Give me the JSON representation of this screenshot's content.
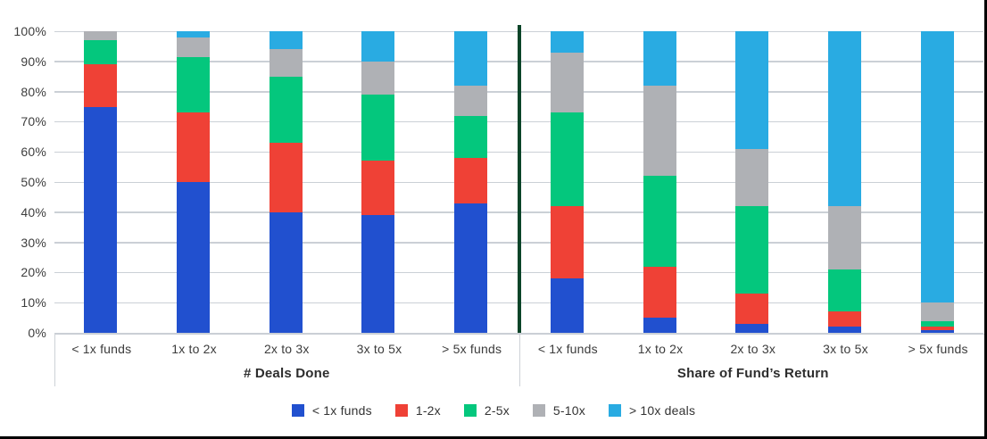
{
  "colors": {
    "series_blue": "#2150CF",
    "series_red": "#EF4136",
    "series_green": "#04C77D",
    "series_gray": "#AFB1B5",
    "series_lightblue": "#29ABE2",
    "divider_green": "#0B4428",
    "gridline": "#CBD0D6",
    "frame_black": "#000000"
  },
  "chart_data": {
    "type": "bar",
    "stacked": true,
    "value_unit": "percent",
    "ylim": [
      0,
      100
    ],
    "grid": true,
    "y_ticks": [
      "0%",
      "10%",
      "20%",
      "30%",
      "40%",
      "50%",
      "60%",
      "70%",
      "80%",
      "90%",
      "100%"
    ],
    "series_names": [
      "< 1x funds",
      "1-2x",
      "2-5x",
      "5-10x",
      "> 10x deals"
    ],
    "series_colors": [
      "#2150CF",
      "#EF4136",
      "#04C77D",
      "#AFB1B5",
      "#29ABE2"
    ],
    "legend_position": "bottom",
    "groups": [
      {
        "label": "# Deals Done",
        "categories": [
          "< 1x funds",
          "1x to 2x",
          "2x to 3x",
          "3x to 5x",
          "> 5x funds"
        ],
        "bars": [
          [
            75,
            14,
            8,
            3,
            0
          ],
          [
            50,
            23,
            18.5,
            6.5,
            2
          ],
          [
            40,
            23,
            22,
            9,
            6
          ],
          [
            39,
            18,
            22,
            11,
            10
          ],
          [
            43,
            15,
            14,
            10,
            18
          ]
        ]
      },
      {
        "label": "Share of Fund’s Return",
        "categories": [
          "< 1x funds",
          "1x to 2x",
          "2x to 3x",
          "3x to 5x",
          "> 5x funds"
        ],
        "bars": [
          [
            18,
            24,
            31,
            20,
            7
          ],
          [
            5,
            17,
            30,
            30,
            18
          ],
          [
            3,
            10,
            29,
            19,
            39
          ],
          [
            2,
            5,
            14,
            21,
            58
          ],
          [
            1,
            1,
            2,
            6,
            90
          ]
        ]
      }
    ]
  }
}
